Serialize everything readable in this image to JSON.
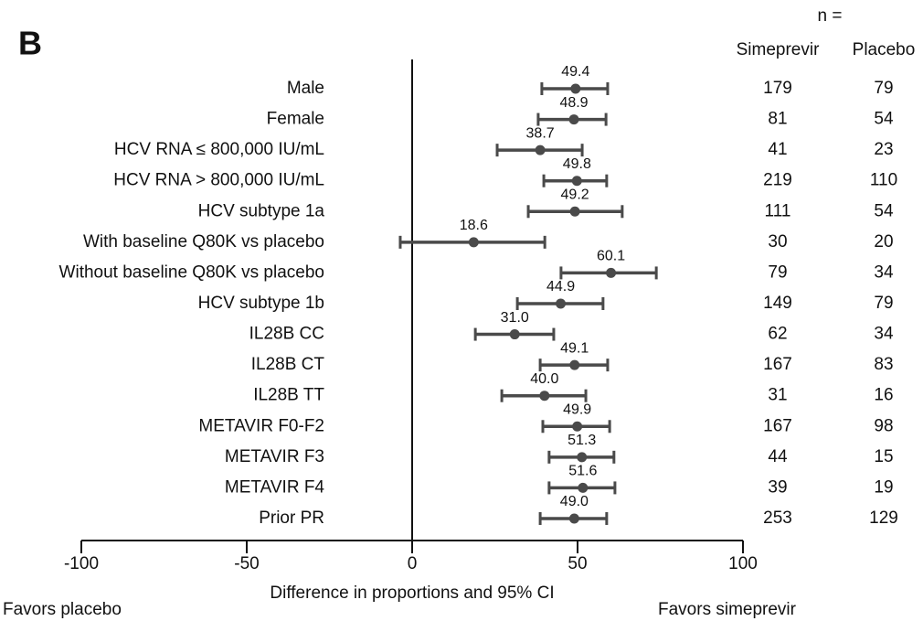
{
  "chart_data": {
    "type": "forest",
    "panel_label": "B",
    "xlabel": "Difference in proportions and 95% CI",
    "left_note": "Favors placebo",
    "right_note": "Favors simeprevir",
    "n_header": "n =",
    "column_headers": [
      "Simeprevir",
      "Placebo"
    ],
    "categories": [
      "Male",
      "Female",
      "HCV RNA ≤ 800,000 IU/mL",
      "HCV RNA > 800,000 IU/mL",
      "HCV subtype 1a",
      "With baseline Q80K vs placebo",
      "Without baseline Q80K vs placebo",
      "HCV subtype 1b",
      "IL28B CC",
      "IL28B CT",
      "IL28B TT",
      "METAVIR F0-F2",
      "METAVIR F3",
      "METAVIR F4",
      "Prior PR"
    ],
    "values": [
      49.4,
      48.9,
      38.7,
      49.8,
      49.2,
      18.6,
      60.1,
      44.9,
      31,
      49.1,
      40,
      49.9,
      51.3,
      51.6,
      49
    ],
    "value_labels": [
      "49.4",
      "48.9",
      "38.7",
      "49.8",
      "49.2",
      "18.6",
      "60.1",
      "44.9",
      "31.0",
      "49.1",
      "40.0",
      "49.9",
      "51.3",
      "51.6",
      "49.0"
    ],
    "lower": [
      39.2,
      38.1,
      25.7,
      39.8,
      35.1,
      -3.6,
      45,
      31.8,
      19.1,
      38.7,
      27.1,
      39.5,
      41.4,
      41.4,
      38.7
    ],
    "upper": [
      59.1,
      58.6,
      51.4,
      58.8,
      63.5,
      40.1,
      73.8,
      57.7,
      42.8,
      59.1,
      52.5,
      59.7,
      61,
      61.3,
      58.8
    ],
    "n_simeprevir": [
      179,
      81,
      41,
      219,
      111,
      30,
      79,
      149,
      62,
      167,
      31,
      167,
      44,
      39,
      253
    ],
    "n_placebo": [
      79,
      54,
      23,
      110,
      54,
      20,
      34,
      79,
      34,
      83,
      16,
      98,
      15,
      19,
      129
    ],
    "color": "#4a4a4a",
    "xlim": [
      -100,
      100
    ],
    "xticks": [
      -100,
      -50,
      0,
      50,
      100
    ]
  }
}
